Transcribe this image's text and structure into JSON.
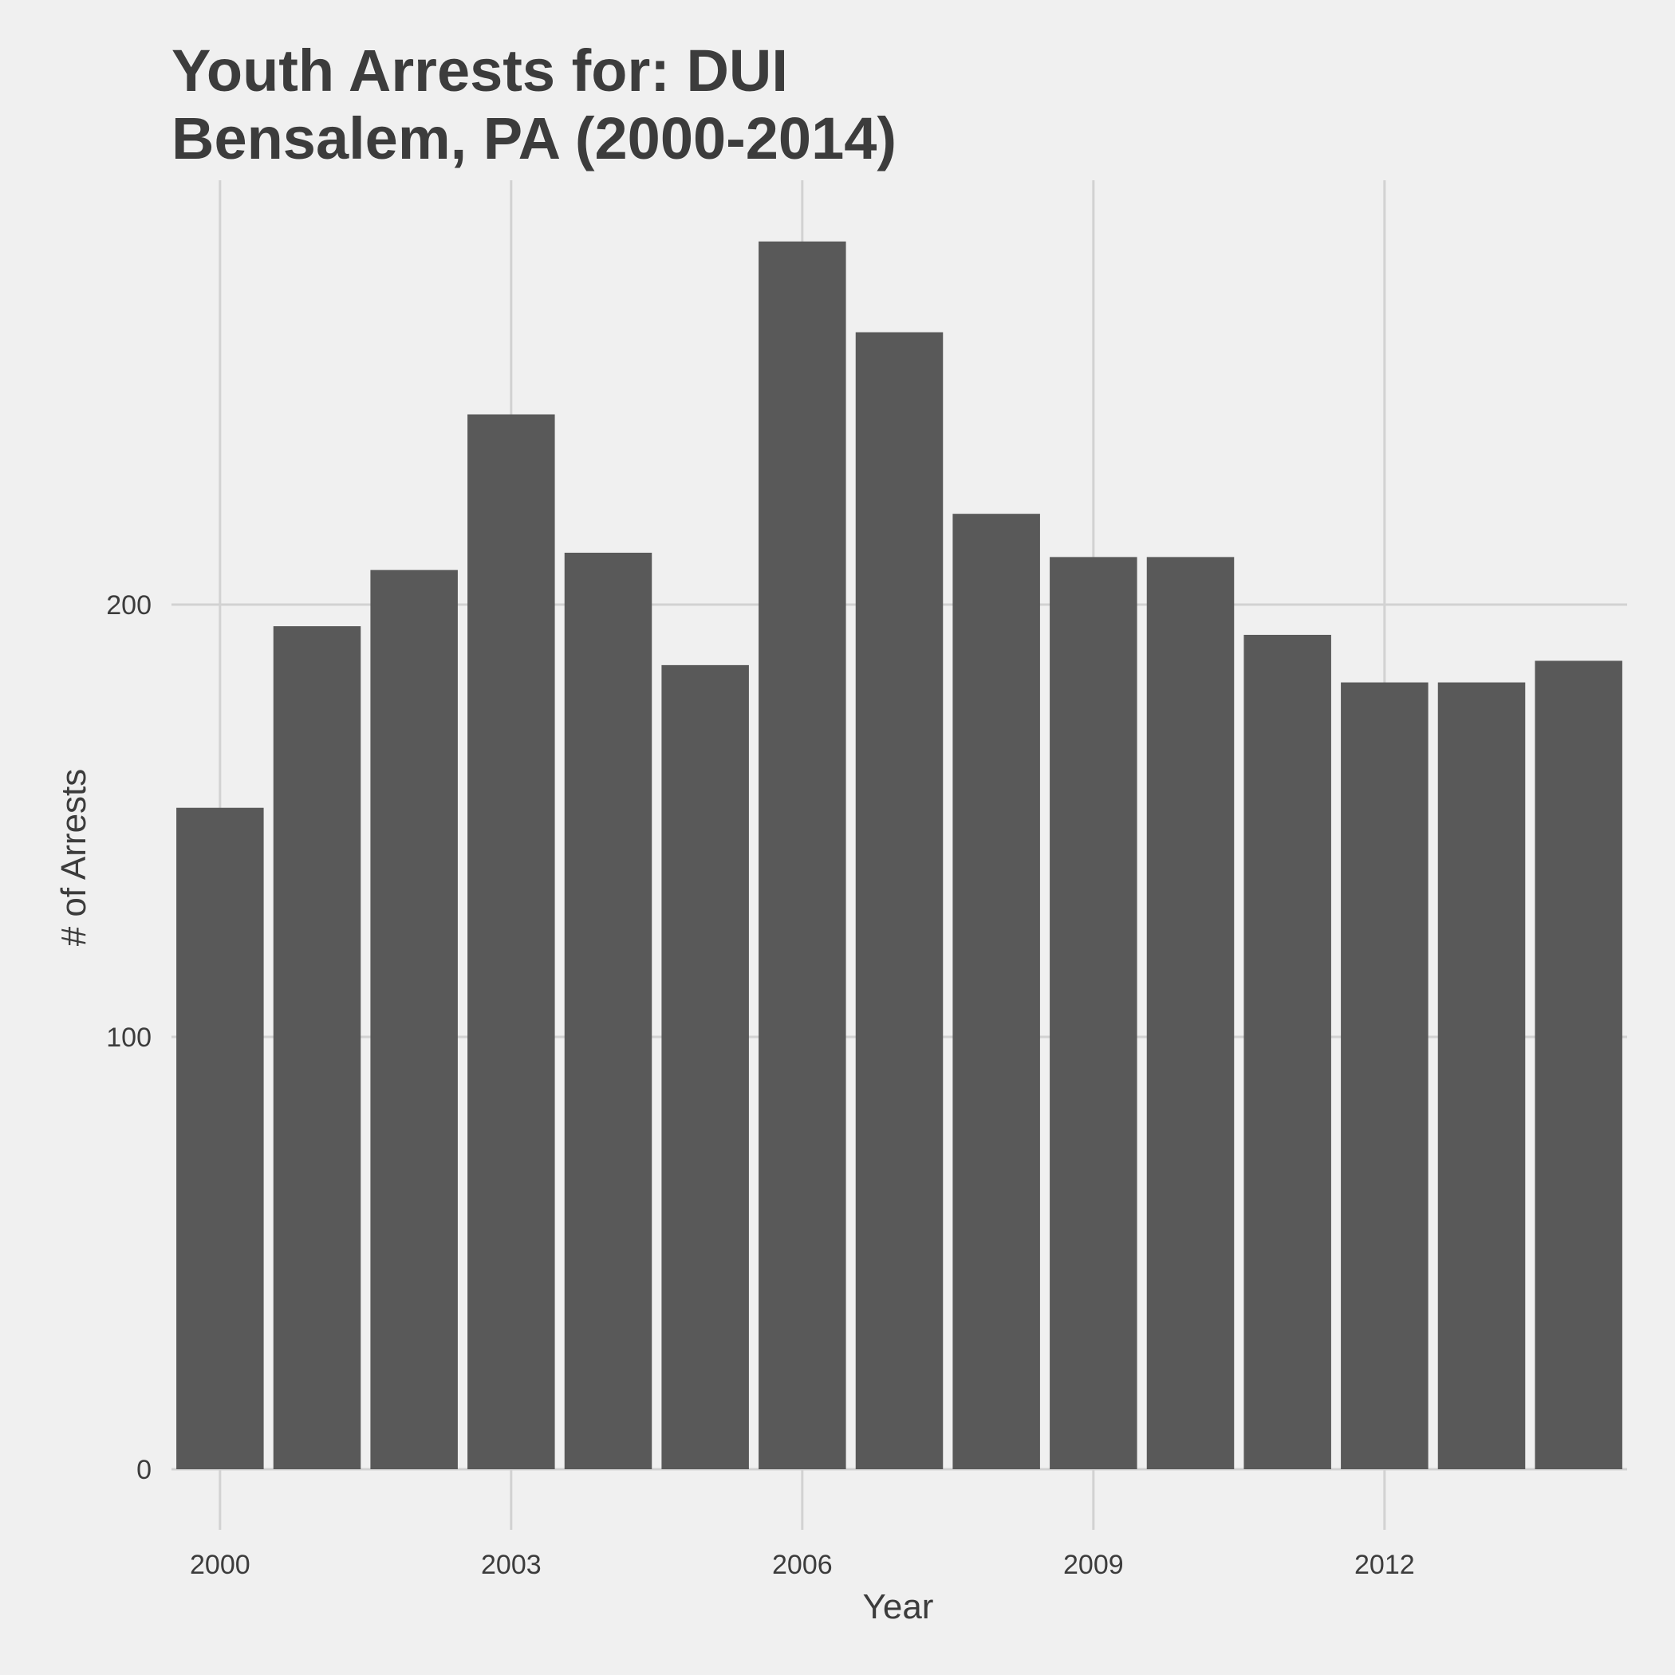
{
  "chart_data": {
    "type": "bar",
    "title": [
      "Youth Arrests for: DUI",
      "Bensalem, PA (2000-2014)"
    ],
    "xlabel": "Year",
    "ylabel": "# of Arrests",
    "categories": [
      2000,
      2001,
      2002,
      2003,
      2004,
      2005,
      2006,
      2007,
      2008,
      2009,
      2010,
      2011,
      2012,
      2013,
      2014
    ],
    "values": [
      153,
      195,
      208,
      244,
      212,
      186,
      284,
      263,
      221,
      211,
      211,
      193,
      182,
      182,
      187
    ],
    "ylim": [
      0,
      300
    ],
    "xlim": [
      1999.5,
      2014.5
    ],
    "y_ticks": [
      0,
      100,
      200
    ],
    "x_ticks": [
      2000,
      2003,
      2006,
      2009,
      2012
    ],
    "grid": true,
    "legend": "none",
    "colors": {
      "background": "#f0f0f0",
      "bar": "#595959",
      "grid": "#d2d2d2",
      "text": "#3c3c3c"
    }
  }
}
